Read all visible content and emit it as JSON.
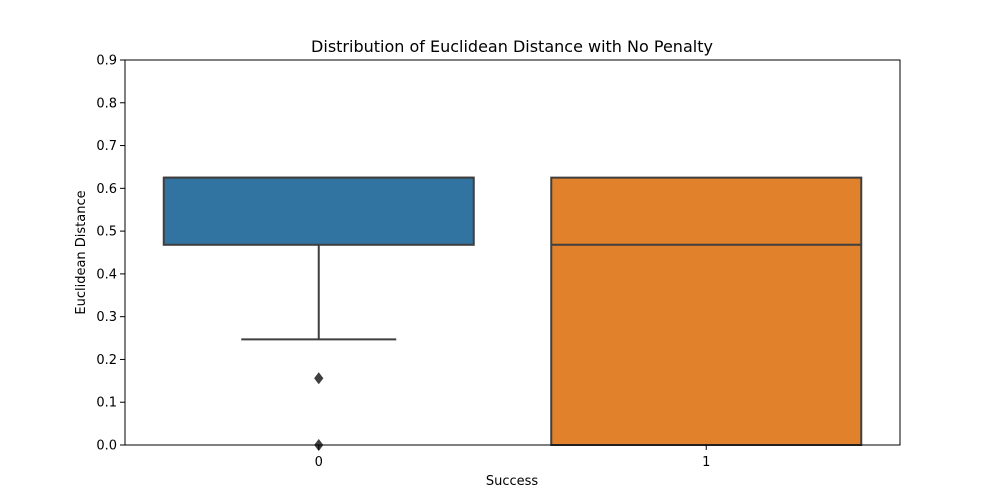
{
  "chart_data": {
    "type": "box",
    "title": "Distribution of Euclidean Distance with No Penalty",
    "xlabel": "Success",
    "ylabel": "Euclidean Distance",
    "categories": [
      "0",
      "1"
    ],
    "ylim": [
      0.0,
      0.9
    ],
    "yticks": [
      "0.0",
      "0.1",
      "0.2",
      "0.3",
      "0.4",
      "0.5",
      "0.6",
      "0.7",
      "0.8",
      "0.9"
    ],
    "grid": false,
    "boxes": [
      {
        "category": "0",
        "color": "#3274a1",
        "whisker_low": 0.247,
        "q1": 0.468,
        "median": 0.625,
        "q3": 0.625,
        "whisker_high": 0.625,
        "outliers": [
          0.156,
          0.0
        ]
      },
      {
        "category": "1",
        "color": "#e1812c",
        "whisker_low": 0.0,
        "q1": 0.0,
        "median": 0.468,
        "q3": 0.625,
        "whisker_high": 0.625,
        "outliers": []
      }
    ],
    "line_color": "#3f3f3f"
  }
}
